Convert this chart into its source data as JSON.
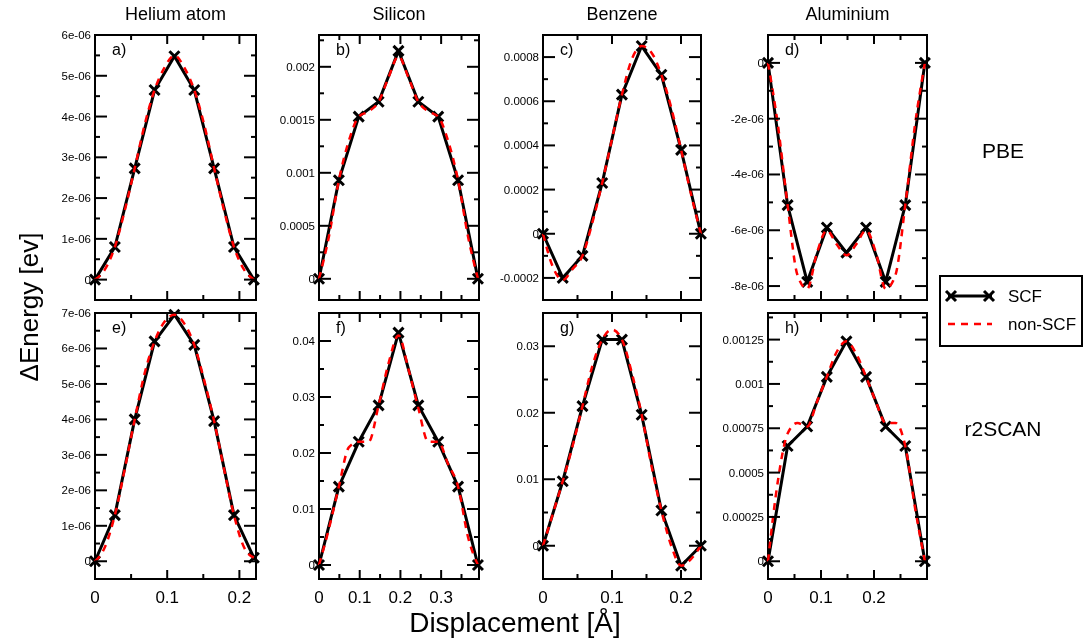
{
  "chart_data": [
    {
      "type": "line",
      "title": "Helium atom",
      "ylabel": "ΔEnergy [ev]",
      "annotations": [
        "a)"
      ],
      "tick_labels": "y",
      "xlim": [
        0,
        0.223
      ],
      "xticks": [
        0,
        {
          "value": 0.05,
          "label": null
        },
        0.1,
        {
          "value": 0.15,
          "label": null
        },
        0.2
      ],
      "ylim": [
        -5e-07,
        6e-06
      ],
      "yticks": [
        0,
        {
          "value": 5e-07,
          "label": null
        },
        {
          "value": 1e-06,
          "label": "1e-06"
        },
        {
          "value": 1.5e-06,
          "label": null
        },
        {
          "value": 2e-06,
          "label": "2e-06"
        },
        {
          "value": 2.5e-06,
          "label": null
        },
        {
          "value": 3e-06,
          "label": "3e-06"
        },
        {
          "value": 3.5e-06,
          "label": null
        },
        {
          "value": 4e-06,
          "label": "4e-06"
        },
        {
          "value": 4.5e-06,
          "label": null
        },
        {
          "value": 5e-06,
          "label": "5e-06"
        },
        {
          "value": 5.5e-06,
          "label": null
        },
        {
          "value": 6e-06,
          "label": "6e-06"
        }
      ],
      "series": [
        {
          "color": "#000000",
          "marker": "cross",
          "line_style": "solid",
          "x": [
            0,
            0.0275,
            0.055,
            0.0825,
            0.11,
            0.1375,
            0.165,
            0.1925,
            0.22
          ],
          "values": [
            0,
            8e-07,
            2.73e-06,
            4.65e-06,
            5.48e-06,
            4.65e-06,
            2.73e-06,
            8e-07,
            0
          ]
        },
        {
          "color": "#ff0000",
          "marker": "none",
          "line_style": "dashed",
          "x": [
            0,
            0.01375,
            0.0275,
            0.04125,
            0.055,
            0.06875,
            0.0825,
            0.09625,
            0.11,
            0.12375,
            0.1375,
            0.15125,
            0.165,
            0.17875,
            0.1925,
            0.20625,
            0.22
          ],
          "values": [
            0,
            2.5e-07,
            8e-07,
            1.7e-06,
            2.73e-06,
            3.8e-06,
            4.65e-06,
            5.2e-06,
            5.5e-06,
            5.2e-06,
            4.65e-06,
            3.8e-06,
            2.73e-06,
            1.7e-06,
            8e-07,
            2.5e-07,
            0
          ]
        }
      ]
    },
    {
      "type": "line",
      "title": "Silicon",
      "annotations": [
        "b)"
      ],
      "tick_labels": "y",
      "xlim": [
        0,
        0.393
      ],
      "xticks": [
        0,
        {
          "value": 0.05,
          "label": null
        },
        0.1,
        {
          "value": 0.15,
          "label": null
        },
        0.2,
        {
          "value": 0.25,
          "label": null
        },
        0.3,
        {
          "value": 0.35,
          "label": null
        }
      ],
      "ylim": [
        -0.0002,
        0.0023
      ],
      "yticks": [
        0,
        {
          "value": 0.00025,
          "label": null
        },
        0.0005,
        {
          "value": 0.00075,
          "label": null
        },
        0.001,
        {
          "value": 0.00125,
          "label": null
        },
        0.0015,
        {
          "value": 0.00175,
          "label": null
        },
        0.002,
        {
          "value": 0.00225,
          "label": null
        }
      ],
      "series": [
        {
          "color": "#000000",
          "marker": "cross",
          "line_style": "solid",
          "x": [
            0,
            0.0488,
            0.0976,
            0.1464,
            0.1952,
            0.244,
            0.2928,
            0.3416,
            0.3904
          ],
          "values": [
            0,
            0.00093,
            0.00153,
            0.00167,
            0.00215,
            0.00167,
            0.00153,
            0.00093,
            0
          ]
        },
        {
          "color": "#ff0000",
          "marker": "none",
          "line_style": "dashed",
          "x": [
            0,
            0.0244,
            0.0488,
            0.0732,
            0.0976,
            0.122,
            0.1464,
            0.1708,
            0.1952,
            0.2196,
            0.244,
            0.2684,
            0.2928,
            0.3172,
            0.3416,
            0.366,
            0.3904
          ],
          "values": [
            0,
            0.0004,
            0.00093,
            0.0013,
            0.00153,
            0.00158,
            0.00167,
            0.0019,
            0.0021,
            0.0019,
            0.00167,
            0.00158,
            0.00153,
            0.0013,
            0.00093,
            0.0004,
            0
          ]
        }
      ]
    },
    {
      "type": "line",
      "title": "Benzene",
      "annotations": [
        "c)"
      ],
      "tick_labels": "y",
      "xlim": [
        0,
        0.229
      ],
      "xticks": [
        0,
        {
          "value": 0.05,
          "label": null
        },
        0.1,
        {
          "value": 0.15,
          "label": null
        },
        0.2
      ],
      "ylim": [
        -0.0003,
        0.0009
      ],
      "yticks": [
        -0.0002,
        {
          "value": -0.0001,
          "label": null
        },
        0,
        {
          "value": 0.0001,
          "label": null
        },
        0.0002,
        {
          "value": 0.0003,
          "label": null
        },
        0.0004,
        {
          "value": 0.0005,
          "label": null
        },
        0.0006,
        {
          "value": 0.0007,
          "label": null
        },
        0.0008
      ],
      "series": [
        {
          "color": "#000000",
          "marker": "cross",
          "line_style": "solid",
          "x": [
            0,
            0.0286,
            0.0572,
            0.0858,
            0.1144,
            0.143,
            0.1716,
            0.2002,
            0.2288
          ],
          "values": [
            0,
            -0.0002,
            -0.0001,
            0.00023,
            0.00063,
            0.00085,
            0.00072,
            0.00038,
            0
          ]
        },
        {
          "color": "#ff0000",
          "marker": "none",
          "line_style": "dashed",
          "x": [
            0,
            0.0143,
            0.0286,
            0.0429,
            0.0572,
            0.0715,
            0.0858,
            0.1001,
            0.1144,
            0.1287,
            0.143,
            0.1573,
            0.1716,
            0.1859,
            0.2002,
            0.2145,
            0.2288
          ],
          "values": [
            0,
            -0.00015,
            -0.00021,
            -0.00016,
            -0.0001,
            5e-05,
            0.00023,
            0.00043,
            0.00063,
            0.00079,
            0.00085,
            0.00082,
            0.00072,
            0.00057,
            0.00038,
            0.00018,
            0
          ]
        }
      ]
    },
    {
      "type": "line",
      "title": "Aluminium",
      "annotations": [
        "d)",
        "PBE"
      ],
      "legend": "right",
      "tick_labels": "y",
      "xlim": [
        0,
        0.3
      ],
      "xticks": [
        0,
        {
          "value": 0.05,
          "label": null
        },
        0.1,
        {
          "value": 0.15,
          "label": null
        },
        0.2,
        {
          "value": 0.25,
          "label": null
        }
      ],
      "ylim": [
        -8.5e-06,
        1e-06
      ],
      "yticks": [
        {
          "value": -8e-06,
          "label": "-8e-06"
        },
        {
          "value": -7e-06,
          "label": null
        },
        {
          "value": -6e-06,
          "label": "-6e-06"
        },
        {
          "value": -5e-06,
          "label": null
        },
        {
          "value": -4e-06,
          "label": "-4e-06"
        },
        {
          "value": -3e-06,
          "label": null
        },
        {
          "value": -2e-06,
          "label": "-2e-06"
        },
        {
          "value": -1e-06,
          "label": null
        },
        0
      ],
      "series": [
        {
          "name": "SCF",
          "color": "#000000",
          "marker": "cross",
          "line_style": "solid",
          "x": [
            0,
            0.037,
            0.074,
            0.111,
            0.148,
            0.185,
            0.222,
            0.259,
            0.296
          ],
          "values": [
            0,
            -5.1e-06,
            -7.85e-06,
            -5.9e-06,
            -6.8e-06,
            -5.9e-06,
            -7.85e-06,
            -5.1e-06,
            0
          ]
        },
        {
          "name": "non-SCF",
          "color": "#ff0000",
          "marker": "none",
          "line_style": "dashed",
          "x": [
            0,
            0.0185,
            0.037,
            0.0555,
            0.074,
            0.0925,
            0.111,
            0.1295,
            0.148,
            0.1665,
            0.185,
            0.2035,
            0.222,
            0.2405,
            0.259,
            0.2775,
            0.296
          ],
          "values": [
            0,
            -2.2e-06,
            -5.1e-06,
            -7.6e-06,
            -8.1e-06,
            -6.8e-06,
            -6e-06,
            -6.5e-06,
            -6.9e-06,
            -6.5e-06,
            -6e-06,
            -6.8e-06,
            -8.1e-06,
            -7.6e-06,
            -5.1e-06,
            -2.2e-06,
            0
          ]
        }
      ]
    },
    {
      "type": "line",
      "annotations": [
        "e)"
      ],
      "xlim": [
        0,
        0.223
      ],
      "xticks": [
        0,
        {
          "value": 0.05,
          "label": null
        },
        0.1,
        {
          "value": 0.15,
          "label": null
        },
        0.2
      ],
      "ylim": [
        -5e-07,
        7e-06
      ],
      "yticks": [
        0,
        {
          "value": 5e-07,
          "label": null
        },
        {
          "value": 1e-06,
          "label": "1e-06"
        },
        {
          "value": 1.5e-06,
          "label": null
        },
        {
          "value": 2e-06,
          "label": "2e-06"
        },
        {
          "value": 2.5e-06,
          "label": null
        },
        {
          "value": 3e-06,
          "label": "3e-06"
        },
        {
          "value": 3.5e-06,
          "label": null
        },
        {
          "value": 4e-06,
          "label": "4e-06"
        },
        {
          "value": 4.5e-06,
          "label": null
        },
        {
          "value": 5e-06,
          "label": "5e-06"
        },
        {
          "value": 5.5e-06,
          "label": null
        },
        {
          "value": 6e-06,
          "label": "6e-06"
        },
        {
          "value": 6.5e-06,
          "label": null
        },
        {
          "value": 7e-06,
          "label": "7e-06"
        }
      ],
      "series": [
        {
          "color": "#000000",
          "marker": "cross",
          "line_style": "solid",
          "x": [
            0,
            0.0275,
            0.055,
            0.0825,
            0.11,
            0.1375,
            0.165,
            0.1925,
            0.22
          ],
          "values": [
            0,
            1.3e-06,
            4e-06,
            6.2e-06,
            6.95e-06,
            6.1e-06,
            3.95e-06,
            1.3e-06,
            1e-07
          ]
        },
        {
          "color": "#ff0000",
          "marker": "none",
          "line_style": "dashed",
          "x": [
            0,
            0.01375,
            0.0275,
            0.04125,
            0.055,
            0.06875,
            0.0825,
            0.09625,
            0.11,
            0.12375,
            0.1375,
            0.15125,
            0.165,
            0.17875,
            0.1925,
            0.20625,
            0.22
          ],
          "values": [
            0,
            4e-07,
            1.3e-06,
            2.6e-06,
            4e-06,
            5.3e-06,
            6.2e-06,
            6.75e-06,
            6.95e-06,
            6.7e-06,
            6.1e-06,
            5.1e-06,
            3.95e-06,
            2.6e-06,
            1.3e-06,
            4e-07,
            1e-07
          ]
        }
      ]
    },
    {
      "type": "line",
      "xlabel": "Displacement [Å]",
      "annotations": [
        "f)"
      ],
      "xlim": [
        0,
        0.393
      ],
      "xticks": [
        0,
        {
          "value": 0.05,
          "label": null
        },
        0.1,
        {
          "value": 0.15,
          "label": null
        },
        0.2,
        {
          "value": 0.25,
          "label": null
        },
        0.3,
        {
          "value": 0.35,
          "label": null
        }
      ],
      "ylim": [
        -0.0025,
        0.045
      ],
      "yticks": [
        0,
        {
          "value": 0.005,
          "label": null
        },
        0.01,
        {
          "value": 0.015,
          "label": null
        },
        0.02,
        {
          "value": 0.025,
          "label": null
        },
        0.03,
        {
          "value": 0.035,
          "label": null
        },
        0.04
      ],
      "series": [
        {
          "color": "#000000",
          "marker": "cross",
          "line_style": "solid",
          "x": [
            0,
            0.0488,
            0.0976,
            0.1464,
            0.1952,
            0.244,
            0.2928,
            0.3416,
            0.3904
          ],
          "values": [
            0,
            0.014,
            0.022,
            0.0285,
            0.0415,
            0.0285,
            0.022,
            0.014,
            0
          ]
        },
        {
          "color": "#ff0000",
          "marker": "none",
          "line_style": "dashed",
          "x": [
            0,
            0.0244,
            0.0488,
            0.0732,
            0.0976,
            0.122,
            0.1464,
            0.1708,
            0.1952,
            0.2196,
            0.244,
            0.2684,
            0.2928,
            0.3172,
            0.3416,
            0.366,
            0.3904
          ],
          "values": [
            0,
            0.0065,
            0.014,
            0.021,
            0.022,
            0.022,
            0.0285,
            0.036,
            0.041,
            0.035,
            0.028,
            0.022,
            0.022,
            0.018,
            0.014,
            0.005,
            0
          ]
        }
      ]
    },
    {
      "type": "line",
      "annotations": [
        "g)"
      ],
      "xlim": [
        0,
        0.229
      ],
      "xticks": [
        0,
        {
          "value": 0.05,
          "label": null
        },
        0.1,
        {
          "value": 0.15,
          "label": null
        },
        0.2
      ],
      "ylim": [
        -0.005,
        0.035
      ],
      "yticks": [
        0,
        {
          "value": 0.005,
          "label": null
        },
        0.01,
        {
          "value": 0.015,
          "label": null
        },
        0.02,
        {
          "value": 0.025,
          "label": null
        },
        0.03
      ],
      "series": [
        {
          "color": "#000000",
          "marker": "cross",
          "line_style": "solid",
          "x": [
            0,
            0.0286,
            0.0572,
            0.0858,
            0.1144,
            0.143,
            0.1716,
            0.2002,
            0.2288
          ],
          "values": [
            0,
            0.0097,
            0.021,
            0.031,
            0.031,
            0.0197,
            0.0053,
            -0.003,
            0
          ]
        },
        {
          "color": "#ff0000",
          "marker": "none",
          "line_style": "dashed",
          "x": [
            0,
            0.0143,
            0.0286,
            0.0429,
            0.0572,
            0.0715,
            0.0858,
            0.1001,
            0.1144,
            0.1287,
            0.143,
            0.1573,
            0.1716,
            0.1859,
            0.2002,
            0.2145,
            0.2288
          ],
          "values": [
            0,
            0.0048,
            0.0097,
            0.015,
            0.021,
            0.027,
            0.031,
            0.0325,
            0.031,
            0.026,
            0.0197,
            0.012,
            0.0053,
            0,
            -0.003,
            -0.002,
            0
          ]
        }
      ]
    },
    {
      "type": "line",
      "annotations": [
        "h)",
        "r2SCAN"
      ],
      "xlim": [
        0,
        0.3
      ],
      "xticks": [
        0,
        {
          "value": 0.05,
          "label": null
        },
        0.1,
        {
          "value": 0.15,
          "label": null
        },
        0.2,
        {
          "value": 0.25,
          "label": null
        }
      ],
      "ylim": [
        -0.0001,
        0.0014
      ],
      "yticks": [
        0,
        {
          "value": 0.000125,
          "label": null
        },
        0.00025,
        {
          "value": 0.000375,
          "label": null
        },
        0.0005,
        {
          "value": 0.000625,
          "label": null
        },
        0.00075,
        {
          "value": 0.000875,
          "label": null
        },
        0.001,
        {
          "value": 0.001125,
          "label": null
        },
        0.00125,
        {
          "value": 0.001375,
          "label": null
        }
      ],
      "series": [
        {
          "color": "#000000",
          "marker": "cross",
          "line_style": "solid",
          "x": [
            0,
            0.037,
            0.074,
            0.111,
            0.148,
            0.185,
            0.222,
            0.259,
            0.296
          ],
          "values": [
            0,
            0.00065,
            0.00076,
            0.00104,
            0.00124,
            0.00104,
            0.00076,
            0.00065,
            0
          ]
        },
        {
          "color": "#ff0000",
          "marker": "none",
          "line_style": "dashed",
          "x": [
            0,
            0.0185,
            0.037,
            0.0555,
            0.074,
            0.0925,
            0.111,
            0.1295,
            0.148,
            0.1665,
            0.185,
            0.2035,
            0.222,
            0.2405,
            0.259,
            0.2775,
            0.296
          ],
          "values": [
            0,
            0.00045,
            0.00072,
            0.00078,
            0.00076,
            0.0009,
            0.00104,
            0.00118,
            0.00124,
            0.00117,
            0.00104,
            0.0009,
            0.00078,
            0.00078,
            0.00065,
            0.0003,
            0
          ]
        }
      ]
    }
  ]
}
